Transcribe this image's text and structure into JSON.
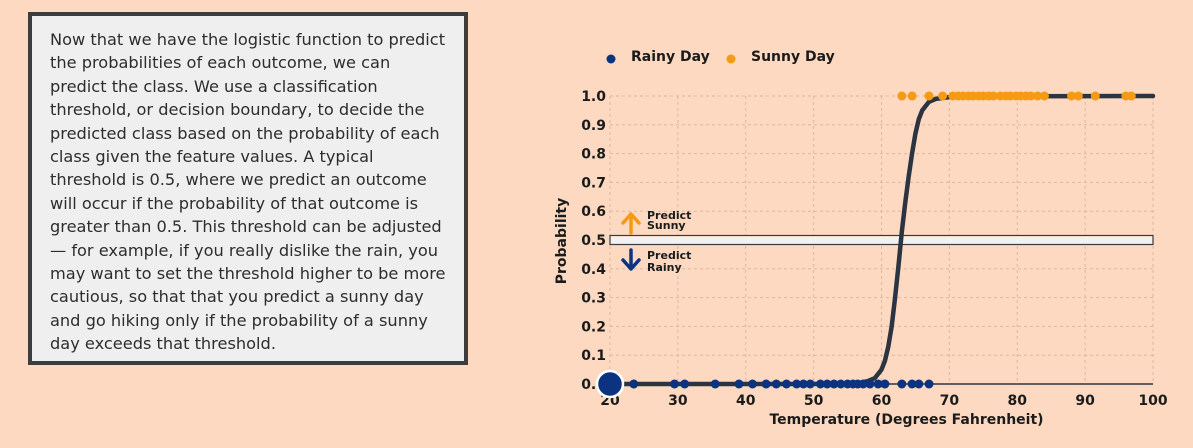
{
  "explanation": {
    "text": "Now that we have the logistic function to predict the probabilities of each outcome, we can predict the class. We use a classification threshold, or decision boundary, to decide the predicted class based on the probability of each class given the feature values. A typical threshold is 0.5, where we predict an outcome will occur if the probability of that outcome is greater than 0.5. This threshold can be adjusted — for example, if you really dislike the rain, you may want to set the threshold higher to be more cautious, so that that you predict a sunny day and go hiking only if the probability of a sunny day exceeds that threshold."
  },
  "chart_data": {
    "type": "scatter",
    "xlabel": "Temperature (Degrees Fahrenheit)",
    "ylabel": "Probability",
    "xlim": [
      20,
      100
    ],
    "ylim": [
      0,
      1
    ],
    "x_ticks": [
      "20",
      "30",
      "40",
      "50",
      "60",
      "70",
      "80",
      "90",
      "100"
    ],
    "y_ticks": [
      "0.0",
      "0.1",
      "0.2",
      "0.3",
      "0.4",
      "0.5",
      "0.6",
      "0.7",
      "0.8",
      "0.9",
      "1.0"
    ],
    "grid": true,
    "legend_position": "top",
    "series": [
      {
        "name": "Rainy Day",
        "color": "#0b3380",
        "x": [
          23.5,
          29.5,
          31,
          35.5,
          39,
          41,
          43,
          44.5,
          46,
          47.5,
          48.5,
          49.5,
          51,
          52,
          53,
          54,
          55,
          55.8,
          56.5,
          57.3,
          58.3,
          59.5,
          60.5,
          63,
          64.5,
          65.5,
          67
        ],
        "y": [
          0,
          0,
          0,
          0,
          0,
          0,
          0,
          0,
          0,
          0,
          0,
          0,
          0,
          0,
          0,
          0,
          0,
          0,
          0,
          0,
          0,
          0,
          0,
          0,
          0,
          0,
          0
        ]
      },
      {
        "name": "Sunny Day",
        "color": "#f59a12",
        "x": [
          63,
          64.5,
          67,
          69,
          70.5,
          71.3,
          72,
          72.8,
          73.5,
          74.3,
          75,
          75.8,
          76.5,
          77.5,
          78.3,
          79,
          79.8,
          80.5,
          81.3,
          82,
          83,
          84,
          88,
          89,
          91.5,
          96,
          96.8
        ],
        "y": [
          1,
          1,
          1,
          1,
          1,
          1,
          1,
          1,
          1,
          1,
          1,
          1,
          1,
          1,
          1,
          1,
          1,
          1,
          1,
          1,
          1,
          1,
          1,
          1,
          1,
          1,
          1
        ]
      }
    ],
    "curve": {
      "color": "#2b3440",
      "x": [
        20,
        50,
        55,
        57,
        58,
        59,
        60,
        60.5,
        61,
        61.5,
        62,
        62.5,
        63,
        63.5,
        64,
        64.5,
        65,
        65.5,
        66,
        67,
        68,
        70,
        75,
        100
      ],
      "y": [
        0,
        0,
        0.002,
        0.005,
        0.01,
        0.02,
        0.05,
        0.08,
        0.13,
        0.2,
        0.3,
        0.41,
        0.53,
        0.63,
        0.72,
        0.8,
        0.87,
        0.92,
        0.95,
        0.98,
        0.99,
        0.996,
        0.999,
        1
      ]
    },
    "threshold": {
      "y": 0.5
    },
    "annotations": {
      "predict_sunny": [
        "Predict",
        "Sunny"
      ],
      "predict_rainy": [
        "Predict",
        "Rainy"
      ],
      "sunny_arrow_color": "#f59a12",
      "rainy_arrow_color": "#0b3380"
    },
    "highlight_point": {
      "x": 20,
      "y": 0,
      "color": "#0b3380"
    }
  }
}
